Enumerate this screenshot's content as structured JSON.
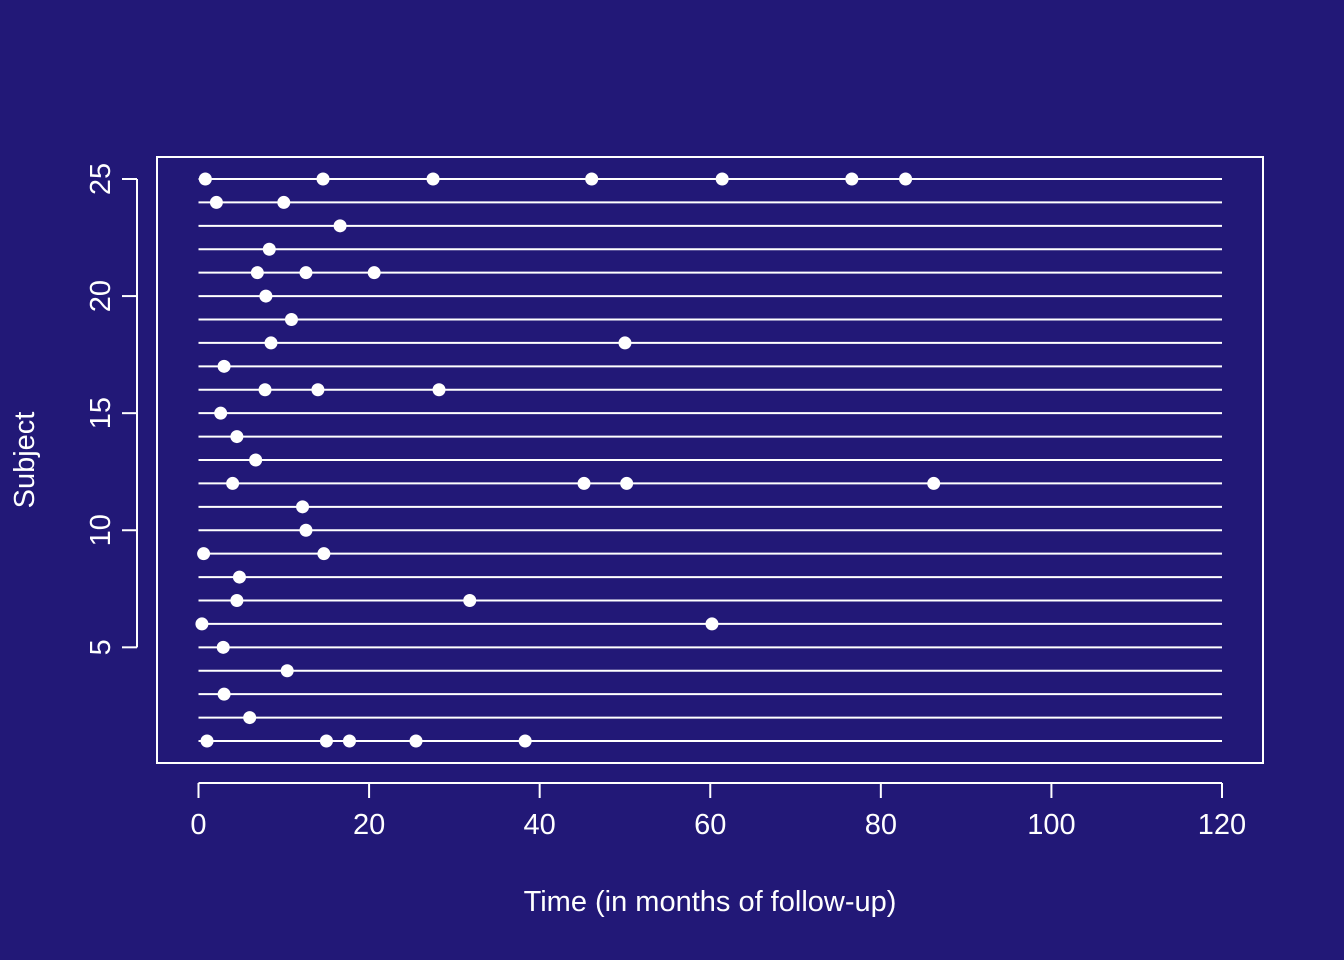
{
  "chart_data": {
    "type": "scatter",
    "title": "",
    "xlabel": "Time (in months of follow-up)",
    "ylabel": "Subject",
    "xlim": [
      0,
      120
    ],
    "ylim": [
      1,
      25
    ],
    "xticks": [
      "0",
      "20",
      "40",
      "60",
      "80",
      "100",
      "120"
    ],
    "yticks": [
      "5",
      "10",
      "15",
      "20",
      "25"
    ],
    "grid": false,
    "legend": "none",
    "colors": {
      "background": "#221877",
      "foreground": "#ffffff"
    },
    "subjects": [
      {
        "subject": 1,
        "events": [
          1.0,
          15.0,
          17.7,
          25.5,
          38.3
        ]
      },
      {
        "subject": 2,
        "events": [
          6.0
        ]
      },
      {
        "subject": 3,
        "events": [
          3.0
        ]
      },
      {
        "subject": 4,
        "events": [
          10.4
        ]
      },
      {
        "subject": 5,
        "events": [
          2.9
        ]
      },
      {
        "subject": 6,
        "events": [
          0.4,
          60.2
        ]
      },
      {
        "subject": 7,
        "events": [
          4.5,
          31.8
        ]
      },
      {
        "subject": 8,
        "events": [
          4.8
        ]
      },
      {
        "subject": 9,
        "events": [
          0.6,
          14.7
        ]
      },
      {
        "subject": 10,
        "events": [
          12.6
        ]
      },
      {
        "subject": 11,
        "events": [
          12.2
        ]
      },
      {
        "subject": 12,
        "events": [
          4.0,
          45.2,
          50.2,
          86.2
        ]
      },
      {
        "subject": 13,
        "events": [
          6.7
        ]
      },
      {
        "subject": 14,
        "events": [
          4.5
        ]
      },
      {
        "subject": 15,
        "events": [
          2.6
        ]
      },
      {
        "subject": 16,
        "events": [
          7.8,
          14.0,
          28.2
        ]
      },
      {
        "subject": 17,
        "events": [
          3.0
        ]
      },
      {
        "subject": 18,
        "events": [
          8.5,
          50.0
        ]
      },
      {
        "subject": 19,
        "events": [
          10.9
        ]
      },
      {
        "subject": 20,
        "events": [
          7.9
        ]
      },
      {
        "subject": 21,
        "events": [
          6.9,
          12.6,
          20.6
        ]
      },
      {
        "subject": 22,
        "events": [
          8.3
        ]
      },
      {
        "subject": 23,
        "events": [
          16.6
        ]
      },
      {
        "subject": 24,
        "events": [
          2.1,
          10.0
        ]
      },
      {
        "subject": 25,
        "events": [
          0.8,
          14.6,
          27.5,
          46.1,
          61.4,
          76.6,
          82.9
        ]
      }
    ],
    "line_end": 120
  }
}
